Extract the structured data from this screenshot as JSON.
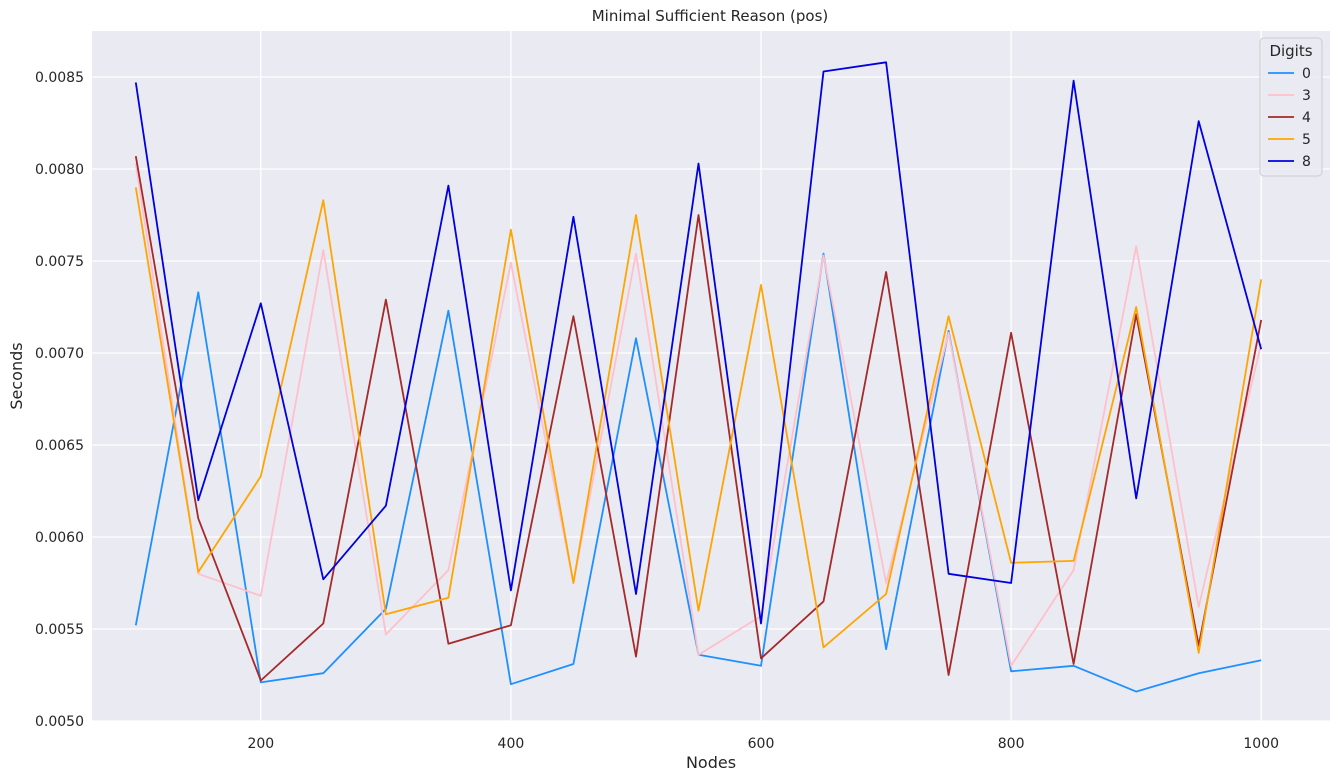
{
  "chart_data": {
    "type": "line",
    "title": "Minimal Sufficient Reason (pos)",
    "xlabel": "Nodes",
    "ylabel": "Seconds",
    "xlim": [
      65,
      1055
    ],
    "ylim": [
      0.005,
      0.00875
    ],
    "xticks": [
      200,
      400,
      600,
      800,
      1000
    ],
    "xtick_labels": [
      "200",
      "400",
      "600",
      "800",
      "1000"
    ],
    "yticks": [
      0.005,
      0.0055,
      0.006,
      0.0065,
      0.007,
      0.0075,
      0.008,
      0.0085
    ],
    "ytick_labels": [
      "0.0050",
      "0.0055",
      "0.0060",
      "0.0065",
      "0.0070",
      "0.0075",
      "0.0080",
      "0.0085"
    ],
    "grid": true,
    "legend": {
      "title": "Digits",
      "placement": "top-right"
    },
    "x": [
      100,
      150,
      200,
      250,
      300,
      350,
      400,
      450,
      500,
      550,
      600,
      650,
      700,
      750,
      800,
      850,
      900,
      950,
      1000
    ],
    "series": [
      {
        "name": "0",
        "color": "#1E90FF",
        "values": [
          0.00552,
          0.00733,
          0.00521,
          0.00526,
          0.00561,
          0.00723,
          0.0052,
          0.00531,
          0.00708,
          0.00536,
          0.0053,
          0.00754,
          0.00539,
          0.00712,
          0.00527,
          0.0053,
          0.00516,
          0.00526,
          0.00533
        ]
      },
      {
        "name": "3",
        "color": "#FFC0CB",
        "values": [
          0.00803,
          0.0058,
          0.00568,
          0.00756,
          0.00547,
          0.00582,
          0.00749,
          0.00575,
          0.00754,
          0.00536,
          0.00557,
          0.00753,
          0.00575,
          0.00711,
          0.0053,
          0.00582,
          0.00758,
          0.00562,
          0.00705
        ]
      },
      {
        "name": "4",
        "color": "#A52A2A",
        "values": [
          0.00807,
          0.0061,
          0.00522,
          0.00553,
          0.00729,
          0.00542,
          0.00552,
          0.0072,
          0.00535,
          0.00775,
          0.00534,
          0.00565,
          0.00744,
          0.00525,
          0.00711,
          0.00531,
          0.00721,
          0.00541,
          0.00718
        ]
      },
      {
        "name": "5",
        "color": "#FFA500",
        "values": [
          0.0079,
          0.00581,
          0.00633,
          0.00783,
          0.00558,
          0.00567,
          0.00767,
          0.00575,
          0.00775,
          0.0056,
          0.00737,
          0.0054,
          0.00569,
          0.0072,
          0.00586,
          0.00587,
          0.00725,
          0.00537,
          0.0074
        ]
      },
      {
        "name": "8",
        "color": "#0000E0",
        "values": [
          0.00847,
          0.0062,
          0.00727,
          0.00577,
          0.00617,
          0.00791,
          0.00571,
          0.00774,
          0.00569,
          0.00803,
          0.00553,
          0.00853,
          0.00858,
          0.0058,
          0.00575,
          0.00848,
          0.00621,
          0.00826,
          0.00702
        ]
      }
    ]
  }
}
